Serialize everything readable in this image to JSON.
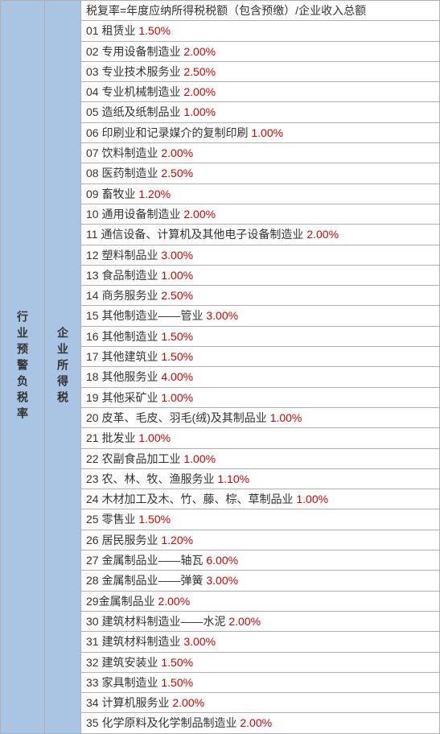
{
  "left_label": "行业预警负税率",
  "mid_label": "企业所得税",
  "formula": "税复率=年度应纳所得税税额（包含预缴）/企业收入总额",
  "text_color": "#333333",
  "rate_color": "#d40000",
  "header_bg": "#aac5e4",
  "border_color": "#b0b0b0",
  "font_family": "Microsoft YaHei",
  "font_size_pt": 10.5,
  "rows": [
    {
      "num": "01",
      "name": "租赁业",
      "rate": "1.50%"
    },
    {
      "num": "02",
      "name": "专用设备制造业",
      "rate": "2.00%"
    },
    {
      "num": "03",
      "name": "专业技术服务业",
      "rate": "2.50%"
    },
    {
      "num": "04",
      "name": "专业机械制造业",
      "rate": "2.00%"
    },
    {
      "num": "05",
      "name": "造纸及纸制品业",
      "rate": "1.00%"
    },
    {
      "num": "06",
      "name": "印刷业和记录媒介的复制印刷",
      "rate": "1.00%"
    },
    {
      "num": "07",
      "name": "饮料制造业",
      "rate": "2.00%"
    },
    {
      "num": "08",
      "name": "医药制造业",
      "rate": "2.50%"
    },
    {
      "num": "09",
      "name": "畜牧业",
      "rate": "1.20%"
    },
    {
      "num": "10",
      "name": "通用设备制造业",
      "rate": "2.00%"
    },
    {
      "num": "11",
      "name": "通信设备、计算机及其他电子设备制造业",
      "rate": "2.00%"
    },
    {
      "num": "12",
      "name": "塑料制品业",
      "rate": "3.00%"
    },
    {
      "num": "13",
      "name": "食品制造业",
      "rate": "1.00%"
    },
    {
      "num": "14",
      "name": "商务服务业",
      "rate": "2.50%"
    },
    {
      "num": "15",
      "name": "其他制造业——管业",
      "rate": "3.00%"
    },
    {
      "num": "16",
      "name": "其他制造业",
      "rate": "1.50%"
    },
    {
      "num": "17",
      "name": "其他建筑业",
      "rate": "1.50%"
    },
    {
      "num": "18",
      "name": "其他服务业",
      "rate": "4.00%"
    },
    {
      "num": "19",
      "name": "其他采矿业",
      "rate": "1.00%"
    },
    {
      "num": "20",
      "name": "皮革、毛皮、羽毛(绒)及其制品业",
      "rate": "1.00%"
    },
    {
      "num": "21",
      "name": "批发业",
      "rate": "1.00%"
    },
    {
      "num": "22",
      "name": "农副食品加工业",
      "rate": "1.00%"
    },
    {
      "num": "23",
      "name": "农、林、牧、渔服务业",
      "rate": "1.10%"
    },
    {
      "num": "24",
      "name": "木材加工及木、竹、藤、棕、草制品业",
      "rate": "1.00%"
    },
    {
      "num": "25",
      "name": "零售业",
      "rate": "1.50%"
    },
    {
      "num": "26",
      "name": "居民服务业",
      "rate": "1.20%"
    },
    {
      "num": "27",
      "name": "金属制品业——轴瓦",
      "rate": "6.00%"
    },
    {
      "num": "28",
      "name": "金属制品业——弹簧",
      "rate": "3.00%"
    },
    {
      "num": "29",
      "name": "金属制品业",
      "rate": "2.00%",
      "nospace": true
    },
    {
      "num": "30",
      "name": "建筑材料制造业——水泥",
      "rate": "2.00%"
    },
    {
      "num": "31",
      "name": "建筑材料制造业",
      "rate": "3.00%"
    },
    {
      "num": "32",
      "name": "建筑安装业",
      "rate": "1.50%"
    },
    {
      "num": "33",
      "name": "家具制造业",
      "rate": "1.50%"
    },
    {
      "num": "34",
      "name": "计算机服务业",
      "rate": "2.00%"
    },
    {
      "num": "35",
      "name": "化学原料及化学制品制造业",
      "rate": "2.00%"
    }
  ]
}
